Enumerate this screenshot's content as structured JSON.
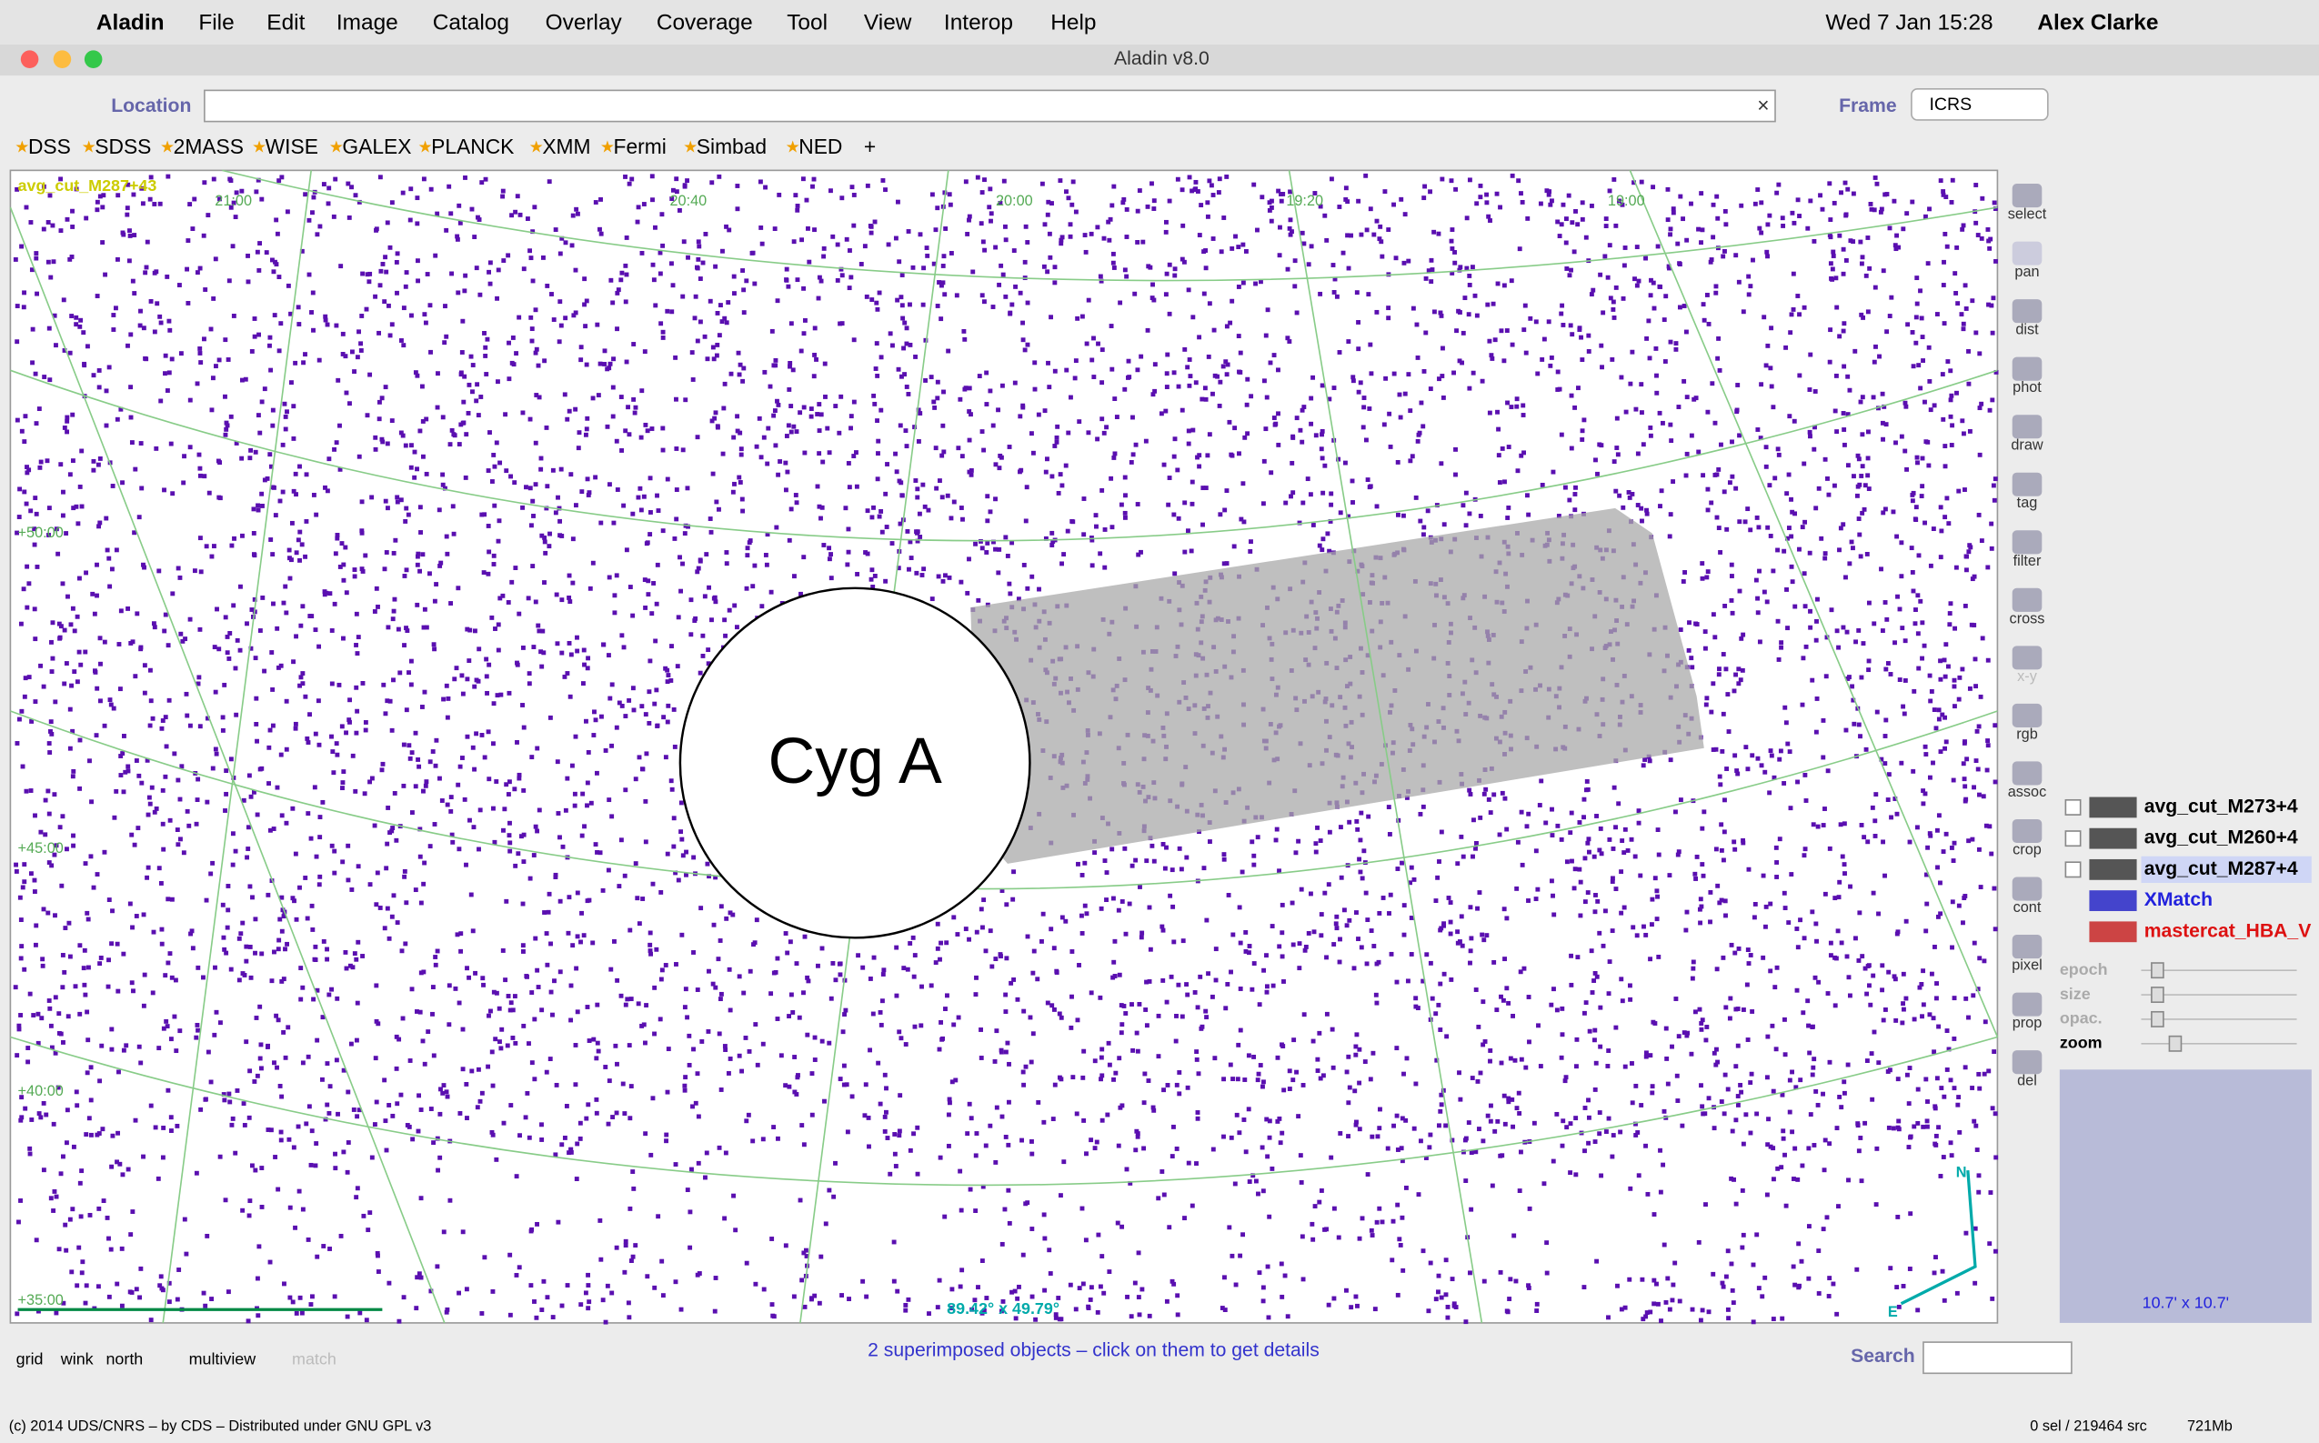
{
  "menu_bar": {
    "app": "Aladin",
    "items": [
      "File",
      "Edit",
      "Image",
      "Catalog",
      "Overlay",
      "Coverage",
      "Tool",
      "View",
      "Interop",
      "Help"
    ],
    "clock": "Wed 7 Jan 15:28",
    "user": "Alex Clarke"
  },
  "window_title": "Aladin v8.0",
  "toolbar": {
    "location_label": "Location",
    "frame_label": "Frame",
    "frame_value": "ICRS"
  },
  "surveys": [
    "DSS",
    "SDSS",
    "2MASS",
    "WISE",
    "GALEX",
    "PLANCK",
    "XMM",
    "Fermi",
    "Simbad",
    "NED"
  ],
  "add_survey": "+",
  "view": {
    "image_label": "avg_cut_M287+43",
    "object_label": "Cyg A",
    "ra_labels": [
      "21:00",
      "20:40",
      "20:00",
      "19:20",
      "19:00"
    ],
    "dec_labels": [
      "+50:00",
      "+45:00",
      "+40:00",
      "+35:00"
    ],
    "fov": "89.42° x 49.79°",
    "north": "N",
    "east": "E"
  },
  "tools": [
    "select",
    "pan",
    "dist",
    "phot",
    "draw",
    "tag",
    "filter",
    "cross",
    "x-y",
    "rgb",
    "assoc",
    "crop",
    "cont",
    "pixel",
    "prop",
    "del"
  ],
  "layers": [
    "avg_cut_M273+4",
    "avg_cut_M260+4",
    "avg_cut_M287+4",
    "XMatch",
    "mastercat_HBA_V"
  ],
  "sliders": [
    "epoch",
    "size",
    "opac.",
    "zoom"
  ],
  "thumbnail_label": "10.7' x 10.7'",
  "bottom_tools": [
    "grid",
    "wink",
    "north",
    "multiview",
    "match"
  ],
  "status": "2 superimposed objects – click on them to get details",
  "search_label": "Search",
  "footer": {
    "copyright": "(c) 2014 UDS/CNRS – by CDS – Distributed under GNU GPL v3",
    "sources": "0 sel / 219464 src",
    "memory": "721Mb"
  }
}
